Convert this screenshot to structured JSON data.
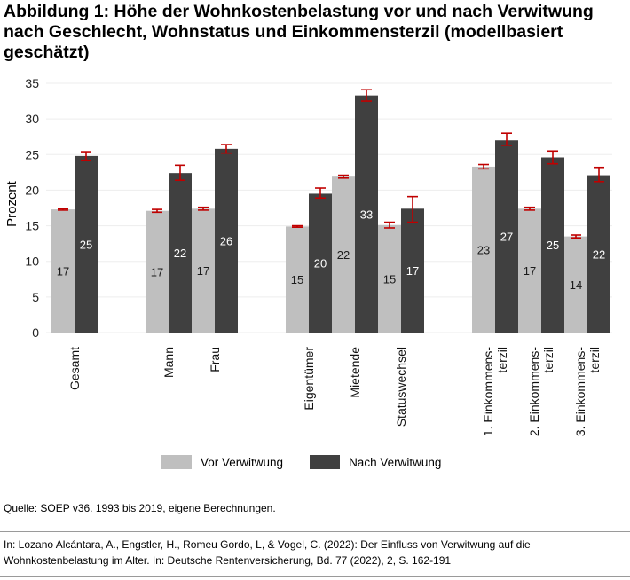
{
  "title": "Abbildung 1:  Höhe der Wohnkostenbelastung vor und nach Verwitwung nach Geschlecht, Wohnstatus und Einkommensterzil (modellbasiert geschätzt)",
  "source": "Quelle: SOEP v36. 1993 bis 2019, eigene Berechnungen.",
  "citation": "In: Lozano Alcántara, A., Engstler, H., Romeu Gordo, L, & Vogel, C. (2022): Der Einfluss von Verwitwung auf die Wohnkostenbelastung im Alter. In: Deutsche Rentenversicherung, Bd. 77 (2022), 2, S. 162-191",
  "colors": {
    "vor": "#bfbfbf",
    "nach": "#404040",
    "error": "#c00000",
    "grid": "#ededed"
  },
  "chart_data": {
    "type": "bar",
    "title": "Höhe der Wohnkostenbelastung vor und nach Verwitwung nach Geschlecht, Wohnstatus und Einkommensterzil (modellbasiert geschätzt)",
    "xlabel": "",
    "ylabel": "Prozent",
    "ylim": [
      0,
      35
    ],
    "yticks": [
      0,
      5,
      10,
      15,
      20,
      25,
      30,
      35
    ],
    "grid": true,
    "legend_position": "bottom",
    "groups": [
      {
        "name": "Gesamt",
        "categories": [
          "Gesamt"
        ]
      },
      {
        "name": "Geschlecht",
        "categories": [
          "Mann",
          "Frau"
        ]
      },
      {
        "name": "Wohnstatus",
        "categories": [
          "Eigentümer",
          "Mietende",
          "Statuswechsel"
        ]
      },
      {
        "name": "Einkommensterzil",
        "categories": [
          "1. Einkommens-terzil",
          "2. Einkommens-terzil",
          "3. Einkommens-terzil"
        ]
      }
    ],
    "categories": [
      "Gesamt",
      "Mann",
      "Frau",
      "Eigentümer",
      "Mietende",
      "Statuswechsel",
      "1. Einkommens-terzil",
      "2. Einkommens-terzil",
      "3. Einkommens-terzil"
    ],
    "category_lines": [
      [
        "Gesamt"
      ],
      [
        "Mann"
      ],
      [
        "Frau"
      ],
      [
        "Eigentümer"
      ],
      [
        "Mietende"
      ],
      [
        "Statuswechsel"
      ],
      [
        "1. Einkommens-",
        "terzil"
      ],
      [
        "2. Einkommens-",
        "terzil"
      ],
      [
        "3. Einkommens-",
        "terzil"
      ]
    ],
    "category_group_index": [
      0,
      1,
      1,
      2,
      2,
      2,
      3,
      3,
      3
    ],
    "series": [
      {
        "name": "Vor Verwitwung",
        "values": [
          17.3,
          17.1,
          17.4,
          14.9,
          21.9,
          15.1,
          23.3,
          17.4,
          13.5
        ],
        "labels": [
          "17",
          "17",
          "17",
          "15",
          "22",
          "15",
          "23",
          "17",
          "14"
        ],
        "ci_low": [
          17.2,
          16.9,
          17.2,
          14.8,
          21.7,
          14.7,
          23.0,
          17.2,
          13.3
        ],
        "ci_high": [
          17.4,
          17.3,
          17.6,
          15.0,
          22.1,
          15.5,
          23.6,
          17.6,
          13.7
        ]
      },
      {
        "name": "Nach Verwitwung",
        "values": [
          24.8,
          22.4,
          25.8,
          19.5,
          33.3,
          17.4,
          27.0,
          24.6,
          22.1
        ],
        "labels": [
          "25",
          "22",
          "26",
          "20",
          "33",
          "17",
          "27",
          "25",
          "22"
        ],
        "ci_low": [
          24.2,
          21.4,
          25.2,
          18.9,
          32.5,
          15.5,
          26.3,
          23.7,
          21.2
        ],
        "ci_high": [
          25.4,
          23.5,
          26.4,
          20.3,
          34.1,
          19.1,
          28.0,
          25.5,
          23.2
        ]
      }
    ]
  }
}
